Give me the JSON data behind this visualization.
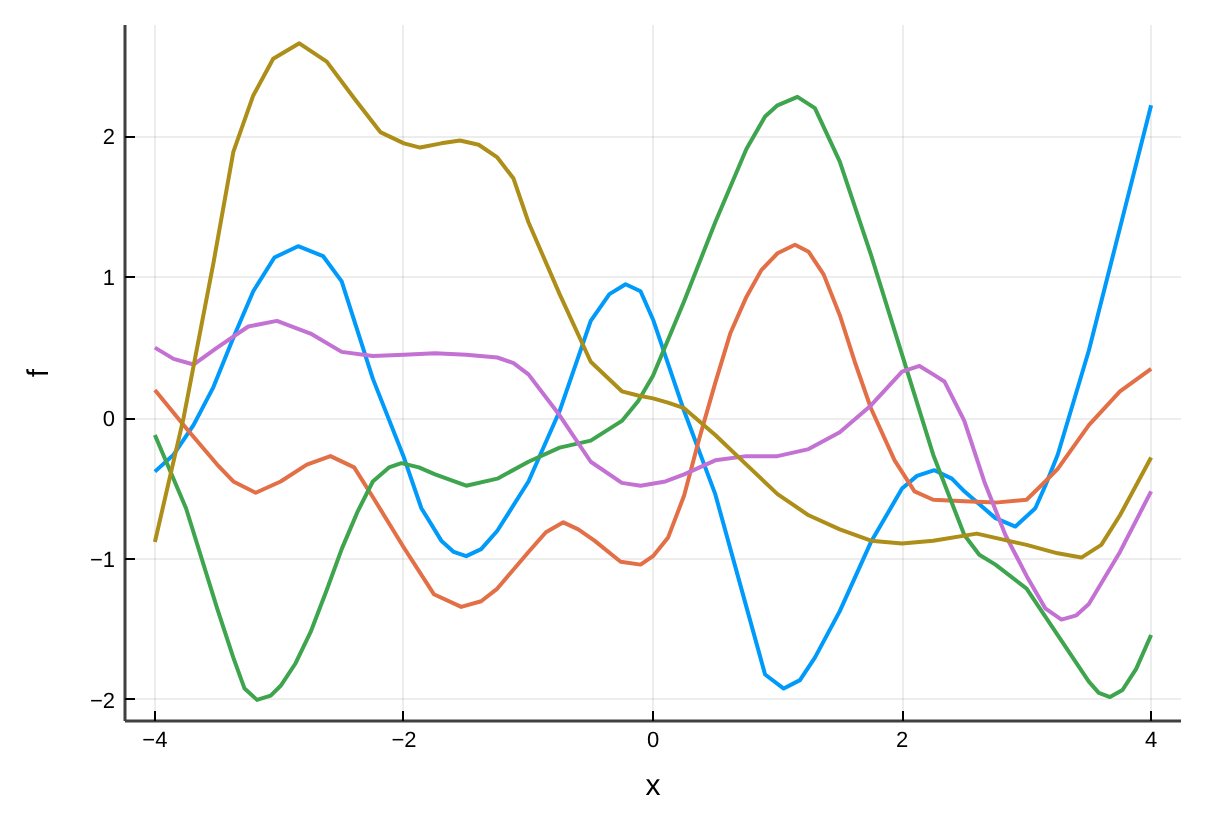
{
  "chart_data": {
    "type": "line",
    "xlabel": "x",
    "ylabel": "f",
    "grid": true,
    "xlim": [
      -4.24,
      4.24
    ],
    "ylim": [
      -2.15,
      2.79
    ],
    "xticks": [
      -4,
      -2,
      0,
      2,
      4
    ],
    "yticks": [
      -2,
      -1,
      0,
      1,
      2
    ],
    "series": [
      {
        "color": "#009afa",
        "x": [
          -4,
          -3.85,
          -3.69,
          -3.53,
          -3.37,
          -3.21,
          -3.04,
          -2.85,
          -2.65,
          -2.5,
          -2.25,
          -2,
          -1.86,
          -1.7,
          -1.6,
          -1.5,
          -1.38,
          -1.25,
          -1,
          -0.75,
          -0.5,
          -0.35,
          -0.22,
          -0.1,
          0,
          0.25,
          0.5,
          0.75,
          0.9,
          1.05,
          1.18,
          1.3,
          1.5,
          1.75,
          2,
          2.12,
          2.26,
          2.4,
          2.5,
          2.75,
          2.91,
          3.07,
          3.15,
          3.25,
          3.5,
          3.75,
          4
        ],
        "values": [
          -0.38,
          -0.26,
          -0.05,
          0.22,
          0.57,
          0.9,
          1.14,
          1.22,
          1.15,
          0.97,
          0.28,
          -0.28,
          -0.64,
          -0.87,
          -0.95,
          -0.98,
          -0.93,
          -0.8,
          -0.45,
          0.05,
          0.69,
          0.88,
          0.95,
          0.9,
          0.7,
          0.05,
          -0.54,
          -1.34,
          -1.82,
          -1.92,
          -1.86,
          -1.7,
          -1.37,
          -0.88,
          -0.5,
          -0.41,
          -0.37,
          -0.43,
          -0.52,
          -0.71,
          -0.77,
          -0.64,
          -0.48,
          -0.26,
          0.48,
          1.35,
          2.22
        ]
      },
      {
        "color": "#e36f47",
        "x": [
          -4,
          -3.75,
          -3.5,
          -3.37,
          -3.19,
          -2.99,
          -2.78,
          -2.59,
          -2.4,
          -2.25,
          -2,
          -1.76,
          -1.54,
          -1.38,
          -1.25,
          -1,
          -0.86,
          -0.72,
          -0.6,
          -0.47,
          -0.26,
          -0.1,
          0,
          0.12,
          0.25,
          0.37,
          0.5,
          0.62,
          0.75,
          0.87,
          1,
          1.14,
          1.25,
          1.37,
          1.5,
          1.62,
          1.75,
          1.94,
          2.1,
          2.25,
          2.5,
          2.75,
          3,
          3.15,
          3.25,
          3.5,
          3.75,
          4
        ],
        "values": [
          0.2,
          -0.07,
          -0.33,
          -0.45,
          -0.53,
          -0.45,
          -0.33,
          -0.27,
          -0.35,
          -0.56,
          -0.92,
          -1.25,
          -1.34,
          -1.3,
          -1.21,
          -0.95,
          -0.81,
          -0.74,
          -0.79,
          -0.87,
          -1.02,
          -1.04,
          -0.98,
          -0.85,
          -0.55,
          -0.15,
          0.25,
          0.6,
          0.86,
          1.05,
          1.17,
          1.23,
          1.18,
          1.02,
          0.73,
          0.4,
          0.07,
          -0.3,
          -0.52,
          -0.58,
          -0.59,
          -0.6,
          -0.58,
          -0.45,
          -0.36,
          -0.05,
          0.19,
          0.35
        ]
      },
      {
        "color": "#3ea44e",
        "x": [
          -4,
          -3.75,
          -3.5,
          -3.37,
          -3.28,
          -3.18,
          -3.07,
          -2.99,
          -2.87,
          -2.75,
          -2.62,
          -2.5,
          -2.37,
          -2.25,
          -2.12,
          -2.02,
          -1.88,
          -1.75,
          -1.5,
          -1.25,
          -1,
          -0.75,
          -0.5,
          -0.25,
          -0.12,
          0,
          0.25,
          0.5,
          0.75,
          0.9,
          1,
          1.16,
          1.3,
          1.5,
          1.75,
          2,
          2.25,
          2.5,
          2.62,
          2.75,
          3,
          3.25,
          3.5,
          3.58,
          3.67,
          3.77,
          3.88,
          4
        ],
        "values": [
          -0.12,
          -0.64,
          -1.35,
          -1.7,
          -1.92,
          -2.0,
          -1.97,
          -1.9,
          -1.74,
          -1.52,
          -1.22,
          -0.93,
          -0.66,
          -0.45,
          -0.35,
          -0.32,
          -0.35,
          -0.4,
          -0.48,
          -0.43,
          -0.31,
          -0.21,
          -0.16,
          -0.02,
          0.12,
          0.3,
          0.83,
          1.39,
          1.91,
          2.14,
          2.22,
          2.28,
          2.2,
          1.82,
          1.16,
          0.45,
          -0.26,
          -0.83,
          -0.97,
          -1.04,
          -1.21,
          -1.54,
          -1.87,
          -1.95,
          -1.98,
          -1.93,
          -1.78,
          -1.54
        ]
      },
      {
        "color": "#c371d2",
        "x": [
          -4,
          -3.85,
          -3.69,
          -3.5,
          -3.25,
          -3.02,
          -2.75,
          -2.5,
          -2.25,
          -2,
          -1.75,
          -1.5,
          -1.25,
          -1.12,
          -1,
          -0.75,
          -0.5,
          -0.25,
          -0.1,
          0.1,
          0.25,
          0.5,
          0.75,
          1,
          1.25,
          1.5,
          1.75,
          2,
          2.14,
          2.25,
          2.34,
          2.5,
          2.66,
          2.83,
          3,
          3.15,
          3.28,
          3.4,
          3.5,
          3.75,
          4
        ],
        "values": [
          0.5,
          0.42,
          0.38,
          0.5,
          0.65,
          0.69,
          0.6,
          0.47,
          0.44,
          0.45,
          0.46,
          0.45,
          0.43,
          0.39,
          0.31,
          0.02,
          -0.31,
          -0.46,
          -0.48,
          -0.45,
          -0.4,
          -0.3,
          -0.27,
          -0.27,
          -0.22,
          -0.1,
          0.09,
          0.33,
          0.37,
          0.31,
          0.26,
          -0.02,
          -0.45,
          -0.83,
          -1.12,
          -1.35,
          -1.43,
          -1.4,
          -1.32,
          -0.95,
          -0.52
        ]
      },
      {
        "color": "#ac8e18",
        "x": [
          -4,
          -3.77,
          -3.53,
          -3.37,
          -3.21,
          -3.05,
          -2.84,
          -2.62,
          -2.4,
          -2.19,
          -2,
          -1.87,
          -1.7,
          -1.55,
          -1.4,
          -1.25,
          -1.12,
          -1,
          -0.75,
          -0.5,
          -0.25,
          -0.12,
          0,
          0.12,
          0.25,
          0.5,
          0.75,
          1,
          1.25,
          1.5,
          1.75,
          2,
          2.25,
          2.6,
          3,
          3.25,
          3.44,
          3.6,
          3.75,
          4
        ],
        "values": [
          -0.88,
          0.0,
          1.1,
          1.89,
          2.29,
          2.55,
          2.66,
          2.53,
          2.27,
          2.03,
          1.95,
          1.92,
          1.95,
          1.97,
          1.94,
          1.85,
          1.7,
          1.39,
          0.88,
          0.4,
          0.19,
          0.16,
          0.14,
          0.11,
          0.07,
          -0.12,
          -0.33,
          -0.54,
          -0.69,
          -0.79,
          -0.87,
          -0.89,
          -0.87,
          -0.82,
          -0.9,
          -0.96,
          -0.99,
          -0.9,
          -0.69,
          -0.28
        ]
      }
    ]
  }
}
